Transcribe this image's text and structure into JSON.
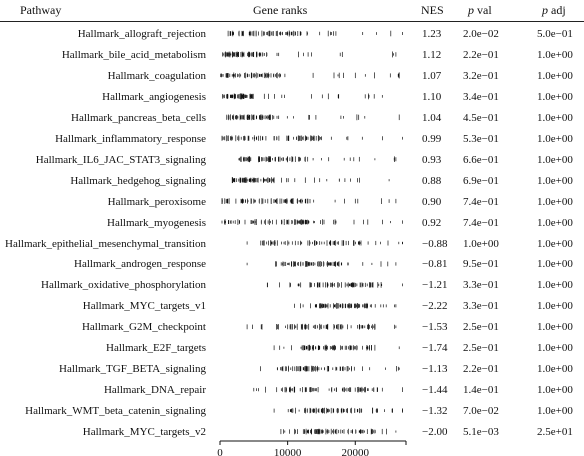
{
  "headers": {
    "pathway": "Pathway",
    "gene_ranks": "Gene ranks",
    "nes": "NES",
    "pval_italic": "p",
    "pval_rest": " val",
    "padj_italic": "p",
    "padj_rest": " adj"
  },
  "rows": [
    {
      "pathway": "Hallmark_allograft_rejection",
      "nes": "1.23",
      "pval": "2.0e−02",
      "padj": "5.0e−01"
    },
    {
      "pathway": "Hallmark_bile_acid_metabolism",
      "nes": "1.12",
      "pval": "2.2e−01",
      "padj": "1.0e+00"
    },
    {
      "pathway": "Hallmark_coagulation",
      "nes": "1.07",
      "pval": "3.2e−01",
      "padj": "1.0e+00"
    },
    {
      "pathway": "Hallmark_angiogenesis",
      "nes": "1.10",
      "pval": "3.4e−01",
      "padj": "1.0e+00"
    },
    {
      "pathway": "Hallmark_pancreas_beta_cells",
      "nes": "1.04",
      "pval": "4.5e−01",
      "padj": "1.0e+00"
    },
    {
      "pathway": "Hallmark_inflammatory_response",
      "nes": "0.99",
      "pval": "5.3e−01",
      "padj": "1.0e+00"
    },
    {
      "pathway": "Hallmark_IL6_JAC_STAT3_signaling",
      "nes": "0.93",
      "pval": "6.6e−01",
      "padj": "1.0e+00"
    },
    {
      "pathway": "Hallmark_hedgehog_signaling",
      "nes": "0.88",
      "pval": "6.9e−01",
      "padj": "1.0e+00"
    },
    {
      "pathway": "Hallmark_peroxisome",
      "nes": "0.90",
      "pval": "7.4e−01",
      "padj": "1.0e+00"
    },
    {
      "pathway": "Hallmark_myogenesis",
      "nes": "0.92",
      "pval": "7.4e−01",
      "padj": "1.0e+00"
    },
    {
      "pathway": "Hallmark_epithelial_mesenchymal_transition",
      "nes": "−0.88",
      "pval": "1.0e+00",
      "padj": "1.0e+00"
    },
    {
      "pathway": "Hallmark_androgen_response",
      "nes": "−0.81",
      "pval": "9.5e−01",
      "padj": "1.0e+00"
    },
    {
      "pathway": "Hallmark_oxidative_phosphorylation",
      "nes": "−1.21",
      "pval": "3.3e−01",
      "padj": "1.0e+00"
    },
    {
      "pathway": "Hallmark_MYC_targets_v1",
      "nes": "−2.22",
      "pval": "3.3e−01",
      "padj": "1.0e+00"
    },
    {
      "pathway": "Hallmark_G2M_checkpoint",
      "nes": "−1.53",
      "pval": "2.5e−01",
      "padj": "1.0e+00"
    },
    {
      "pathway": "Hallmark_E2F_targets",
      "nes": "−1.74",
      "pval": "2.5e−01",
      "padj": "1.0e+00"
    },
    {
      "pathway": "Hallmark_TGF_BETA_signaling",
      "nes": "−1.13",
      "pval": "2.2e−01",
      "padj": "1.0e+00"
    },
    {
      "pathway": "Hallmark_DNA_repair",
      "nes": "−1.44",
      "pval": "1.4e−01",
      "padj": "1.0e+00"
    },
    {
      "pathway": "Hallmark_WMT_beta_catenin_signaling",
      "nes": "−1.32",
      "pval": "7.0e−02",
      "padj": "1.0e+00"
    },
    {
      "pathway": "Hallmark_MYC_targets_v2",
      "nes": "−2.00",
      "pval": "5.1e−03",
      "padj": "2.5e+01"
    }
  ],
  "chart_data": {
    "type": "table",
    "title": "",
    "xlabel": "",
    "x_axis_name": "Gene ranks",
    "xlim": [
      0,
      27500
    ],
    "xticks": [
      {
        "value": 0,
        "label": "0"
      },
      {
        "value": 10000,
        "label": "10000"
      },
      {
        "value": 20000,
        "label": "20000"
      }
    ],
    "barcode_spans": [
      {
        "pathway": "Hallmark_allograft_rejection",
        "from": 1200,
        "to": 27000,
        "dense_from": 1200,
        "dense_to": 12000
      },
      {
        "pathway": "Hallmark_bile_acid_metabolism",
        "from": 400,
        "to": 26000,
        "dense_from": 400,
        "dense_to": 7000
      },
      {
        "pathway": "Hallmark_coagulation",
        "from": 100,
        "to": 26500,
        "dense_from": 100,
        "dense_to": 9000
      },
      {
        "pathway": "Hallmark_angiogenesis",
        "from": 400,
        "to": 24000,
        "dense_from": 400,
        "dense_to": 5000
      },
      {
        "pathway": "Hallmark_pancreas_beta_cells",
        "from": 1000,
        "to": 26500,
        "dense_from": 1000,
        "dense_to": 9000
      },
      {
        "pathway": "Hallmark_inflammatory_response",
        "from": 300,
        "to": 27000,
        "dense_from": 300,
        "dense_to": 16000
      },
      {
        "pathway": "Hallmark_IL6_JAC_STAT3_signaling",
        "from": 2800,
        "to": 26000,
        "dense_from": 2800,
        "dense_to": 13000
      },
      {
        "pathway": "Hallmark_hedgehog_signaling",
        "from": 1800,
        "to": 25000,
        "dense_from": 1800,
        "dense_to": 8000
      },
      {
        "pathway": "Hallmark_peroxisome",
        "from": 300,
        "to": 26000,
        "dense_from": 300,
        "dense_to": 13000
      },
      {
        "pathway": "Hallmark_myogenesis",
        "from": 300,
        "to": 27000,
        "dense_from": 300,
        "dense_to": 15000
      },
      {
        "pathway": "Hallmark_epithelial_mesenchymal_transition",
        "from": 4000,
        "to": 27000,
        "dense_from": 6000,
        "dense_to": 21000
      },
      {
        "pathway": "Hallmark_androgen_response",
        "from": 4000,
        "to": 26000,
        "dense_from": 8000,
        "dense_to": 19000
      },
      {
        "pathway": "Hallmark_oxidative_phosphorylation",
        "from": 7000,
        "to": 27000,
        "dense_from": 10000,
        "dense_to": 23000
      },
      {
        "pathway": "Hallmark_MYC_targets_v1",
        "from": 11000,
        "to": 26000,
        "dense_from": 14000,
        "dense_to": 23000
      },
      {
        "pathway": "Hallmark_G2M_checkpoint",
        "from": 4000,
        "to": 26000,
        "dense_from": 10000,
        "dense_to": 23000
      },
      {
        "pathway": "Hallmark_E2F_targets",
        "from": 8000,
        "to": 26500,
        "dense_from": 12000,
        "dense_to": 23000
      },
      {
        "pathway": "Hallmark_TGF_BETA_signaling",
        "from": 6000,
        "to": 26500,
        "dense_from": 8000,
        "dense_to": 20000
      },
      {
        "pathway": "Hallmark_DNA_repair",
        "from": 5000,
        "to": 27000,
        "dense_from": 9000,
        "dense_to": 23000
      },
      {
        "pathway": "Hallmark_WMT_beta_catenin_signaling",
        "from": 8000,
        "to": 27000,
        "dense_from": 10000,
        "dense_to": 21000
      },
      {
        "pathway": "Hallmark_MYC_targets_v2",
        "from": 9000,
        "to": 26000,
        "dense_from": 12000,
        "dense_to": 23000
      }
    ]
  }
}
